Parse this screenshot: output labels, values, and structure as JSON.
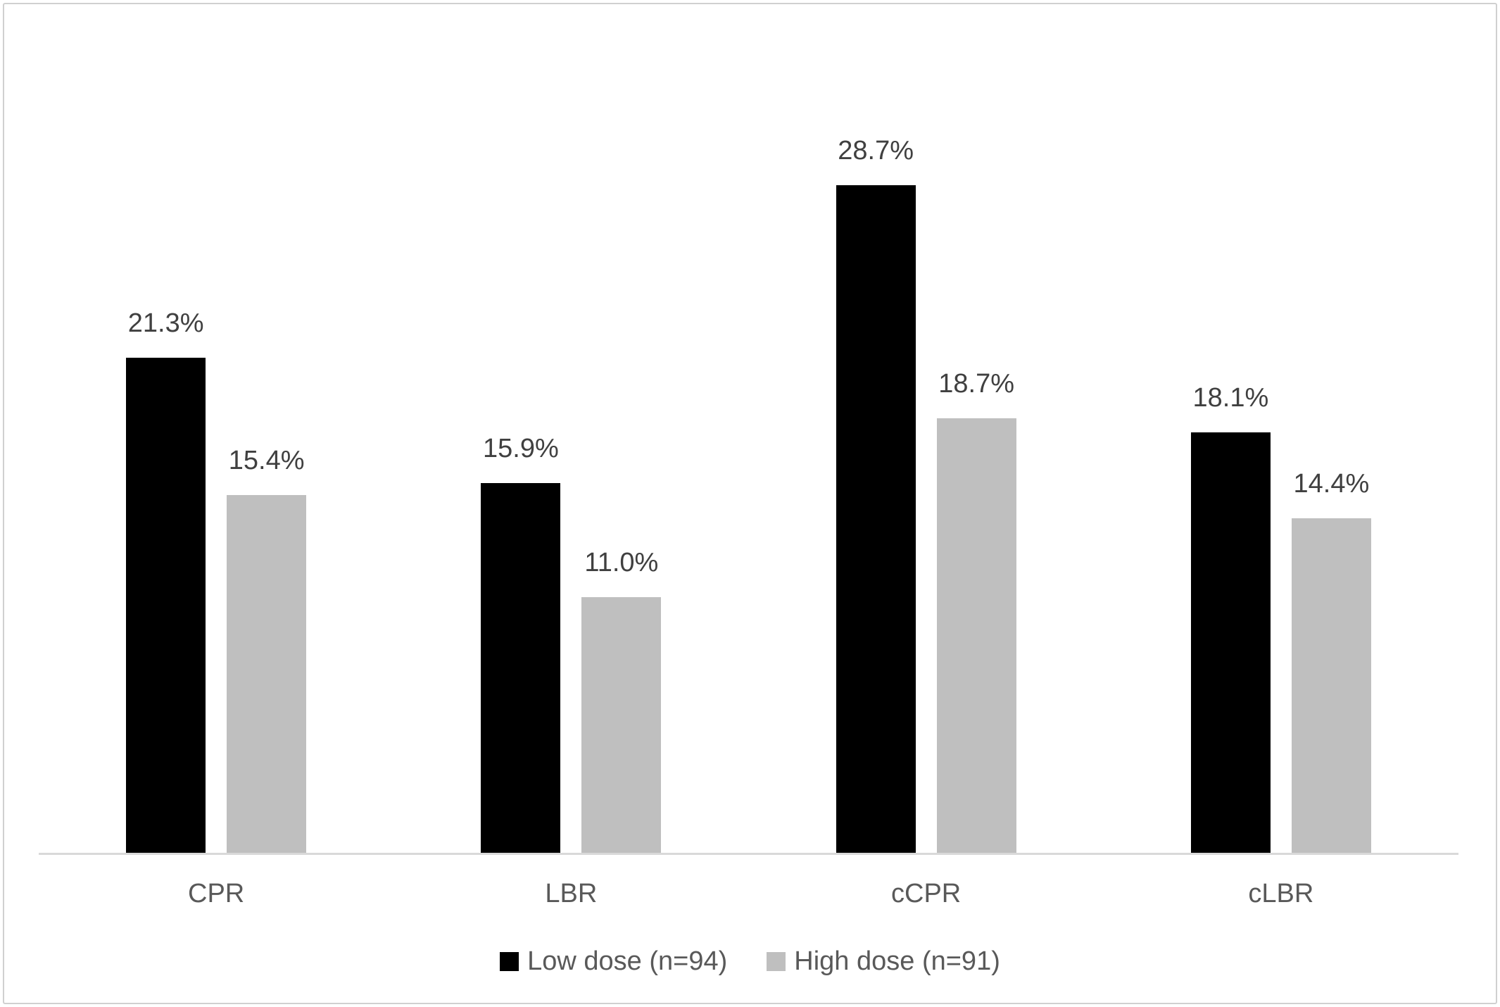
{
  "chart_data": {
    "type": "bar",
    "title": "",
    "xlabel": "",
    "ylabel": "",
    "categories": [
      "CPR",
      "LBR",
      "cCPR",
      "cLBR"
    ],
    "series": [
      {
        "name": "Low dose (n=94)",
        "color": "#000000",
        "values": [
          21.3,
          15.9,
          28.7,
          18.1
        ],
        "labels": [
          "21.3%",
          "15.9%",
          "28.7%",
          "18.1%"
        ]
      },
      {
        "name": "High dose (n=91)",
        "color": "#BFBFBF",
        "values": [
          15.4,
          11.0,
          18.7,
          14.4
        ],
        "labels": [
          "15.4%",
          "11.0%",
          "18.7%",
          "14.4%"
        ]
      }
    ],
    "ylim": [
      0,
      35
    ],
    "grid": false,
    "y_axis_visible": false,
    "data_labels_visible": true,
    "legend_position": "bottom"
  },
  "legend": {
    "items": [
      {
        "label": "Low dose (n=94)",
        "color": "#000000"
      },
      {
        "label": "High dose (n=91)",
        "color": "#BFBFBF"
      }
    ]
  },
  "colors": {
    "background": "#FFFFFF",
    "frame_border": "#D0D0D0",
    "axis_line": "#D9D9D9",
    "data_label_text": "#404040",
    "category_label_text": "#595959",
    "legend_text": "#595959",
    "series_low_dose": "#000000",
    "series_high_dose": "#BFBFBF"
  }
}
